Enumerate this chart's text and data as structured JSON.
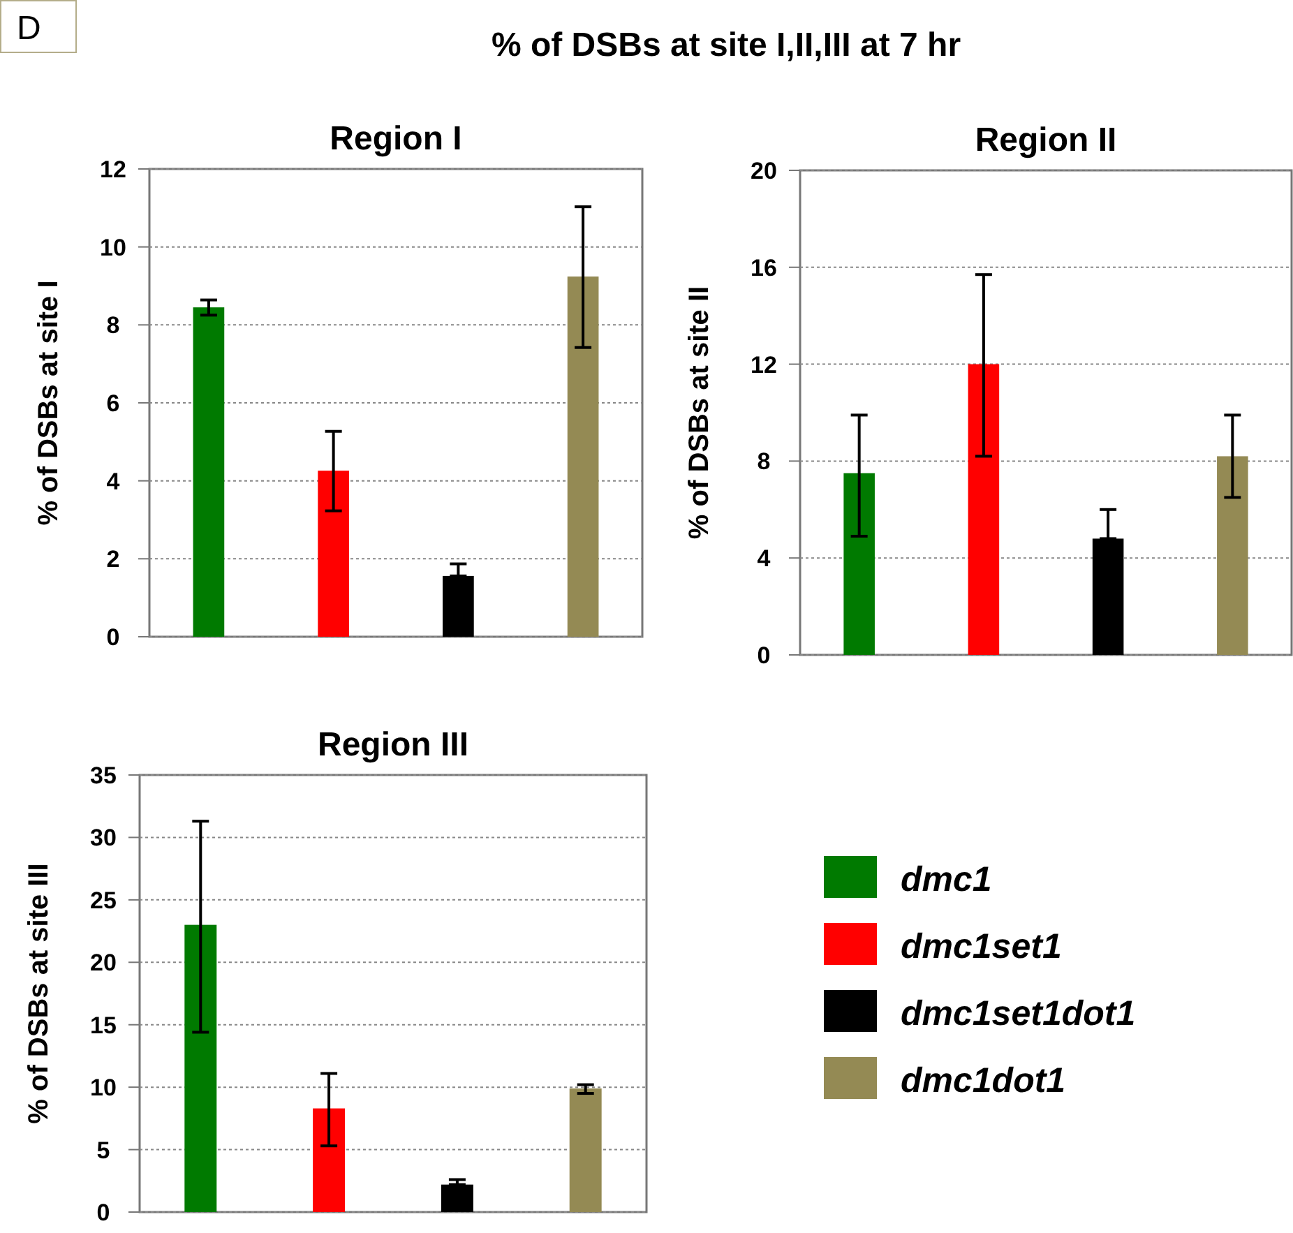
{
  "chart_data": [
    {
      "type": "other",
      "title": "% of DSBs at site I,II,III at 7 hr",
      "annotations": [
        "D"
      ]
    },
    {
      "type": "bar",
      "title": "Region I",
      "ylabel": "% of DSBs at site I",
      "categories": [
        null
      ],
      "ylim": [
        0,
        12
      ],
      "yticks": [
        0,
        2,
        4,
        6,
        8,
        10,
        12
      ],
      "grid": "y",
      "legend": false,
      "series": [
        {
          "color": "#007a00",
          "values": [
            8.45
          ],
          "errors": [
            [
              8.25,
              8.64
            ]
          ]
        },
        {
          "color": "#ff0000",
          "values": [
            4.26
          ],
          "errors": [
            [
              3.23,
              5.27
            ]
          ]
        },
        {
          "color": "#000000",
          "values": [
            1.56
          ],
          "errors": [
            [
              1.56,
              1.87
            ]
          ]
        },
        {
          "color": "#948a54",
          "values": [
            9.24
          ],
          "errors": [
            [
              7.42,
              11.03
            ]
          ]
        }
      ]
    },
    {
      "type": "bar",
      "title": "Region II",
      "ylabel": "% of DSBs at site II",
      "categories": [
        null
      ],
      "ylim": [
        0,
        20
      ],
      "yticks": [
        0,
        4,
        8,
        12,
        16,
        20
      ],
      "grid": "y",
      "legend": false,
      "series": [
        {
          "color": "#007a00",
          "values": [
            7.5
          ],
          "errors": [
            [
              4.9,
              9.9
            ]
          ]
        },
        {
          "color": "#ff0000",
          "values": [
            12.0
          ],
          "errors": [
            [
              8.2,
              15.7
            ]
          ]
        },
        {
          "color": "#000000",
          "values": [
            4.8
          ],
          "errors": [
            [
              4.8,
              6.0
            ]
          ]
        },
        {
          "color": "#948a54",
          "values": [
            8.2
          ],
          "errors": [
            [
              6.5,
              9.9
            ]
          ]
        }
      ]
    },
    {
      "type": "bar",
      "title": "Region III",
      "ylabel": "% of DSBs at site III",
      "categories": [
        null
      ],
      "ylim": [
        0,
        35
      ],
      "yticks": [
        0,
        5,
        10,
        15,
        20,
        25,
        30,
        35
      ],
      "grid": "y",
      "legend": "right",
      "series": [
        {
          "name": "dmc1",
          "color": "#007a00",
          "values": [
            23
          ],
          "errors": [
            [
              14.4,
              31.3
            ]
          ]
        },
        {
          "name": "dmc1set1",
          "color": "#ff0000",
          "values": [
            8.3
          ],
          "errors": [
            [
              5.3,
              11.1
            ]
          ]
        },
        {
          "name": "dmc1set1dot1",
          "color": "#000000",
          "values": [
            2.2
          ],
          "errors": [
            [
              2.2,
              2.6
            ]
          ]
        },
        {
          "name": "dmc1dot1",
          "color": "#948a54",
          "values": [
            9.9
          ],
          "errors": [
            [
              9.5,
              10.2
            ]
          ]
        }
      ]
    }
  ]
}
